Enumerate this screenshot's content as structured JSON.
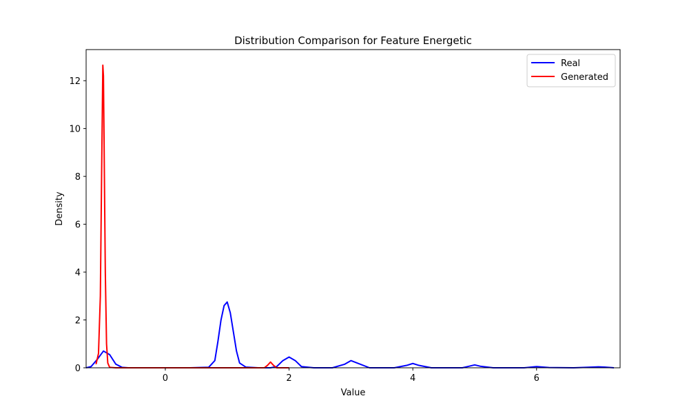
{
  "chart_data": {
    "type": "line",
    "title": "Distribution Comparison for Feature Energetic",
    "xlabel": "Value",
    "ylabel": "Density",
    "xlim": [
      -1.28,
      7.35
    ],
    "ylim": [
      0,
      13.3
    ],
    "x_ticks": [
      0,
      2,
      4,
      6
    ],
    "y_ticks": [
      0,
      2,
      4,
      6,
      8,
      10,
      12
    ],
    "grid": false,
    "legend_position": "top-right",
    "series": [
      {
        "name": "Real",
        "color": "#0000ff",
        "x": [
          -1.28,
          -1.2,
          -1.1,
          -1.0,
          -0.9,
          -0.8,
          -0.7,
          -0.6,
          -0.4,
          0.0,
          0.4,
          0.7,
          0.8,
          0.85,
          0.9,
          0.95,
          1.0,
          1.05,
          1.1,
          1.15,
          1.2,
          1.3,
          1.5,
          1.7,
          1.8,
          1.9,
          2.0,
          2.1,
          2.2,
          2.4,
          2.7,
          2.9,
          3.0,
          3.1,
          3.3,
          3.7,
          3.9,
          4.0,
          4.1,
          4.3,
          4.8,
          4.9,
          5.0,
          5.1,
          5.3,
          5.8,
          6.0,
          6.2,
          6.6,
          6.9,
          7.0,
          7.1,
          7.25
        ],
        "y": [
          0.0,
          0.05,
          0.35,
          0.7,
          0.55,
          0.15,
          0.02,
          0.0,
          0.0,
          0.0,
          0.0,
          0.02,
          0.3,
          1.1,
          2.0,
          2.6,
          2.75,
          2.3,
          1.5,
          0.7,
          0.2,
          0.03,
          0.0,
          0.0,
          0.05,
          0.3,
          0.45,
          0.3,
          0.05,
          0.0,
          0.0,
          0.15,
          0.3,
          0.2,
          0.0,
          0.0,
          0.1,
          0.18,
          0.1,
          0.0,
          0.0,
          0.06,
          0.12,
          0.06,
          0.0,
          0.0,
          0.05,
          0.01,
          0.0,
          0.03,
          0.04,
          0.03,
          0.0
        ]
      },
      {
        "name": "Generated",
        "color": "#ff0000",
        "x": [
          -1.12,
          -1.08,
          -1.05,
          -1.03,
          -1.01,
          -1.0,
          -0.99,
          -0.97,
          -0.95,
          -0.93,
          -0.9,
          -0.8,
          0.0,
          1.0,
          1.6,
          1.65,
          1.7,
          1.75,
          1.8,
          2.0
        ],
        "y": [
          0.15,
          0.6,
          3.0,
          8.0,
          12.65,
          12.2,
          9.5,
          4.0,
          1.0,
          0.2,
          0.02,
          0.0,
          0.0,
          0.0,
          0.0,
          0.1,
          0.24,
          0.1,
          0.0,
          0.0
        ]
      }
    ]
  }
}
